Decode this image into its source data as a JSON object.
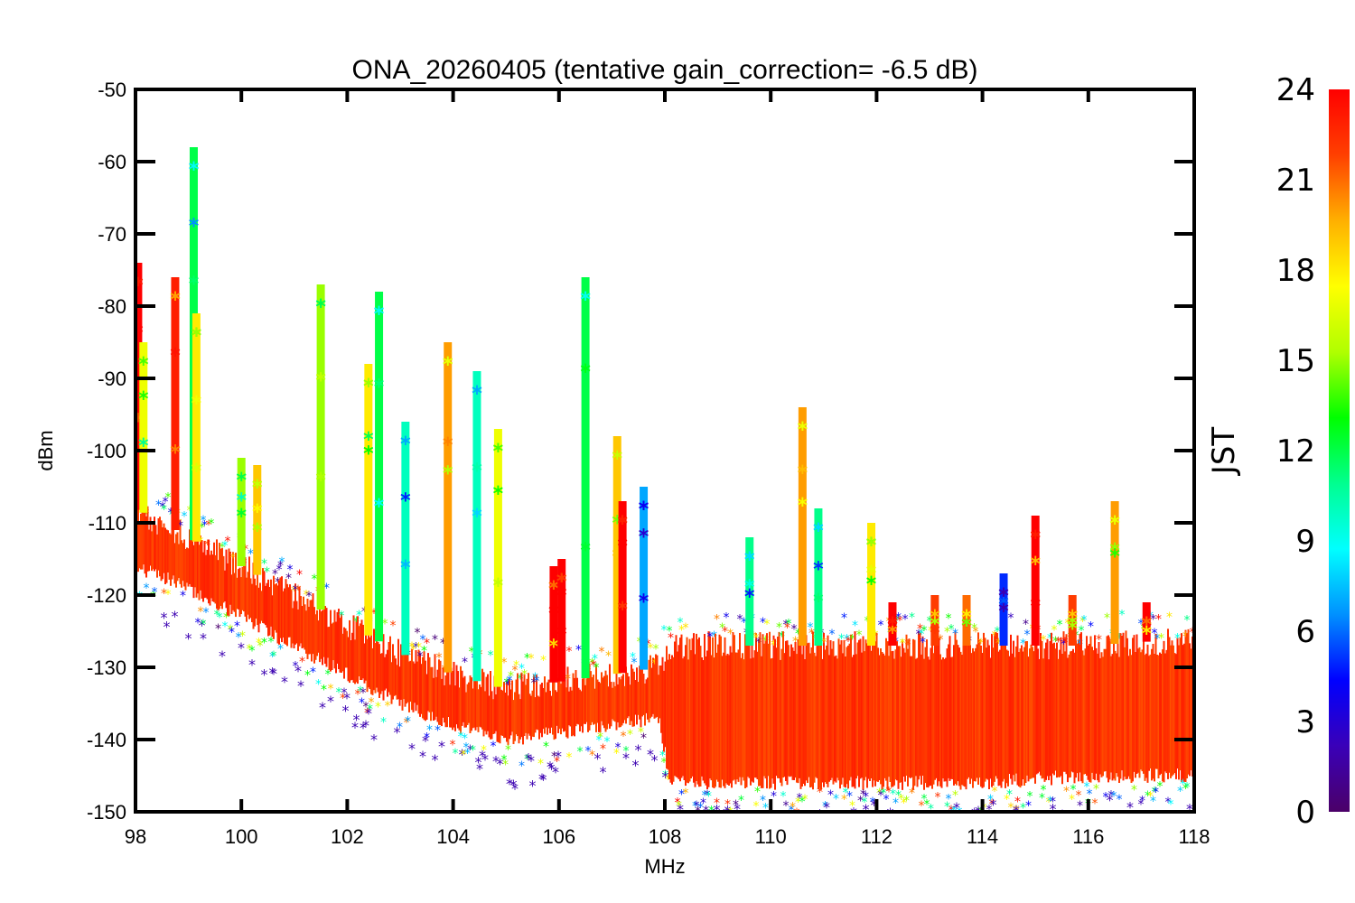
{
  "chart_data": {
    "type": "scatter",
    "title": "ONA_20260405 (tentative gain_correction= -6.5 dB)",
    "xlabel": "MHz",
    "ylabel": "dBm",
    "xlim": [
      98,
      118
    ],
    "ylim": [
      -150,
      -50
    ],
    "x_ticks": [
      98,
      100,
      102,
      104,
      106,
      108,
      110,
      112,
      114,
      116,
      118
    ],
    "x_tick_labels": [
      "98",
      "100",
      "102",
      "104",
      "106",
      "108",
      "110",
      "112",
      "114",
      "116",
      "118"
    ],
    "y_ticks": [
      -50,
      -60,
      -70,
      -80,
      -90,
      -100,
      -110,
      -120,
      -130,
      -140,
      -150
    ],
    "y_tick_labels": [
      "-50",
      "-60",
      "-70",
      "-80",
      "-90",
      "-100",
      "-110",
      "-120",
      "-130",
      "-140",
      "-150"
    ],
    "grid": false,
    "marker": "asterisk",
    "colorbar": {
      "label": "JST",
      "range": [
        0,
        24
      ],
      "ticks": [
        0,
        3,
        6,
        9,
        12,
        15,
        18,
        21,
        24
      ],
      "tick_labels": [
        "0",
        "3",
        "6",
        "9",
        "12",
        "15",
        "18",
        "21",
        "24"
      ],
      "colormap": "rainbow",
      "colors": [
        "#4b0068",
        "#3a00b8",
        "#0000ff",
        "#0090ff",
        "#00ffff",
        "#00ff90",
        "#00ff00",
        "#b0ff00",
        "#ffff00",
        "#ffb000",
        "#ff4000",
        "#ff0000"
      ]
    },
    "noise_floor": {
      "description": "Dense noise floor; declining from ~-113 dBm at 98 MHz to ~-137 dBm at 105 MHz, ~-135 dBm near 107.5 MHz, then a broad band from ~-147 to ~-127 dBm between 108 and 118 MHz",
      "x": [
        98,
        99,
        100,
        101,
        102,
        103,
        104,
        105,
        106,
        107,
        107.9,
        108.1,
        110,
        112,
        114,
        116,
        118
      ],
      "center_dbm": [
        -113,
        -116,
        -120,
        -124,
        -128,
        -132,
        -135,
        -137,
        -136,
        -135,
        -134,
        -136,
        -136,
        -136,
        -135,
        -135,
        -135
      ],
      "lower_dbm": [
        -117,
        -120,
        -124,
        -128,
        -132,
        -136,
        -139,
        -141,
        -140,
        -139,
        -138,
        -147,
        -147,
        -147,
        -147,
        -146,
        -146
      ],
      "upper_dbm": [
        -108,
        -112,
        -116,
        -120,
        -124,
        -128,
        -131,
        -133,
        -132,
        -131,
        -130,
        -127,
        -127,
        -127,
        -127,
        -127,
        -126
      ],
      "low_outliers_jst": 2,
      "dominant_jst": 23
    },
    "peaks": [
      {
        "x": 98.05,
        "peak_dbm": -77,
        "color_jst": 23
      },
      {
        "x": 98.15,
        "peak_dbm": -88,
        "color_jst": 14
      },
      {
        "x": 98.75,
        "peak_dbm": -79,
        "color_jst": 20
      },
      {
        "x": 99.1,
        "peak_dbm": -61,
        "color_jst": 9
      },
      {
        "x": 99.15,
        "peak_dbm": -84,
        "color_jst": 15
      },
      {
        "x": 100.0,
        "peak_dbm": -104,
        "color_jst": 12
      },
      {
        "x": 100.3,
        "peak_dbm": -105,
        "color_jst": 16
      },
      {
        "x": 101.5,
        "peak_dbm": -80,
        "color_jst": 12
      },
      {
        "x": 102.4,
        "peak_dbm": -91,
        "color_jst": 15
      },
      {
        "x": 102.6,
        "peak_dbm": -81,
        "color_jst": 9
      },
      {
        "x": 103.1,
        "peak_dbm": -99,
        "color_jst": 7
      },
      {
        "x": 103.9,
        "peak_dbm": -88,
        "color_jst": 17
      },
      {
        "x": 104.45,
        "peak_dbm": -92,
        "color_jst": 7
      },
      {
        "x": 104.85,
        "peak_dbm": -100,
        "color_jst": 14
      },
      {
        "x": 105.9,
        "peak_dbm": -119,
        "color_jst": 21
      },
      {
        "x": 106.05,
        "peak_dbm": -118,
        "color_jst": 22
      },
      {
        "x": 106.5,
        "peak_dbm": -79,
        "color_jst": 9
      },
      {
        "x": 107.1,
        "peak_dbm": -101,
        "color_jst": 16
      },
      {
        "x": 107.2,
        "peak_dbm": -110,
        "color_jst": 23
      },
      {
        "x": 107.6,
        "peak_dbm": -108,
        "color_jst": 4
      },
      {
        "x": 109.6,
        "peak_dbm": -115,
        "color_jst": 8
      },
      {
        "x": 110.6,
        "peak_dbm": -97,
        "color_jst": 17
      },
      {
        "x": 110.9,
        "peak_dbm": -111,
        "color_jst": 8
      },
      {
        "x": 111.9,
        "peak_dbm": -113,
        "color_jst": 15
      },
      {
        "x": 112.3,
        "peak_dbm": -124,
        "color_jst": 23
      },
      {
        "x": 113.1,
        "peak_dbm": -123,
        "color_jst": 19
      },
      {
        "x": 113.7,
        "peak_dbm": -123,
        "color_jst": 18
      },
      {
        "x": 114.4,
        "peak_dbm": -120,
        "color_jst": 2
      },
      {
        "x": 115.0,
        "peak_dbm": -112,
        "color_jst": 23
      },
      {
        "x": 115.7,
        "peak_dbm": -123,
        "color_jst": 19
      },
      {
        "x": 116.5,
        "peak_dbm": -110,
        "color_jst": 17
      },
      {
        "x": 117.1,
        "peak_dbm": -124,
        "color_jst": 21
      }
    ]
  }
}
